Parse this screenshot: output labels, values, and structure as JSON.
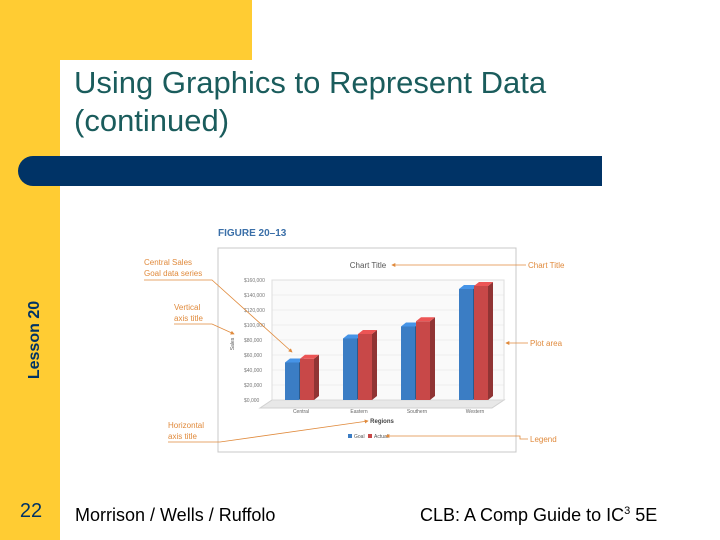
{
  "slide": {
    "title_line1": "Using Graphics to Represent Data",
    "title_line2": "(continued)",
    "lesson": "Lesson 20",
    "page_number": "22",
    "authors": "Morrison / Wells / Ruffolo",
    "book_prefix": "CLB: A Comp Guide to IC",
    "book_sup": "3",
    "book_suffix": " 5E"
  },
  "figure": {
    "label": "FIGURE 20–13",
    "callouts": {
      "series_line1": "Central Sales",
      "series_line2": "Goal data series",
      "vaxis_line1": "Vertical",
      "vaxis_line2": "axis title",
      "haxis_line1": "Horizontal",
      "haxis_line2": "axis title",
      "chart_title": "Chart Title",
      "plot_area": "Plot area",
      "legend": "Legend"
    }
  },
  "colors": {
    "goal": "#3b7dc4",
    "actual": "#c84848",
    "navy": "#003366",
    "yellow": "#ffcc33",
    "title": "#1a5c5c",
    "callout": "#e08a3c"
  },
  "chart_data": {
    "type": "bar",
    "title": "Chart Title",
    "xlabel": "Regions",
    "ylabel": "Sales",
    "categories": [
      "Central",
      "Eastern",
      "Southern",
      "Western"
    ],
    "ticks": [
      "$0,000",
      "$20,000",
      "$40,000",
      "$60,000",
      "$80,000",
      "$100,000",
      "$120,000",
      "$140,000",
      "$160,000"
    ],
    "ylim": [
      0,
      160000
    ],
    "series": [
      {
        "name": "Goal",
        "values": [
          50000,
          82000,
          98000,
          148000
        ]
      },
      {
        "name": "Actual",
        "values": [
          55000,
          88000,
          105000,
          152000
        ]
      }
    ]
  }
}
